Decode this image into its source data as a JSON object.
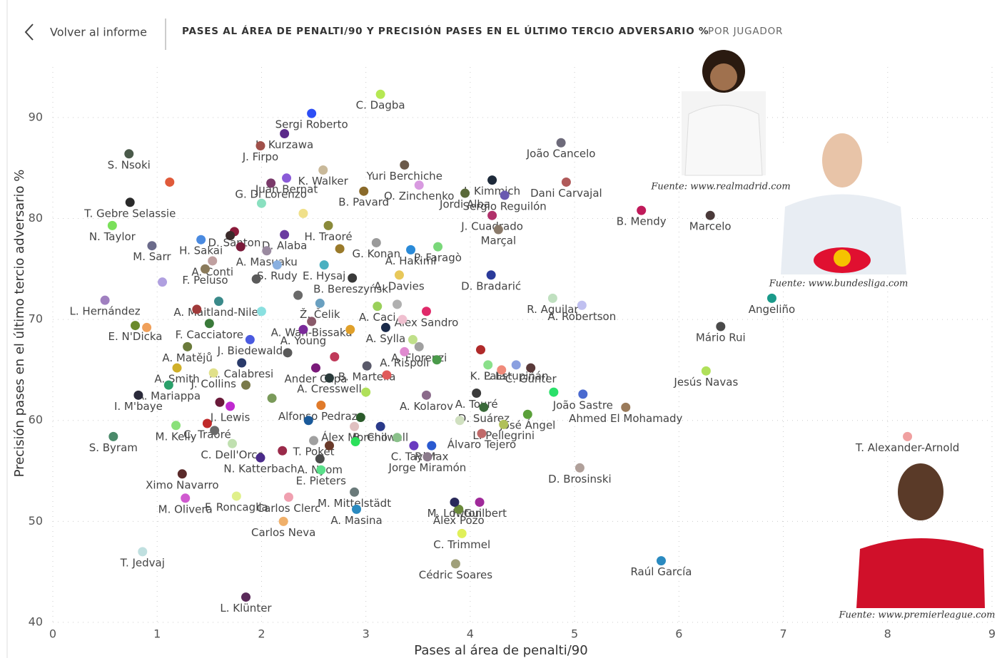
{
  "header": {
    "back": "Volver al informe",
    "title": "PASES AL ÁREA DE PENALTI/90 Y PRECISIÓN PASES EN EL ÚLTIMO TERCIO ADVERSARIO %",
    "subtitle": "POR JUGADOR"
  },
  "photo_credits": [
    "Fuente: www.realmadrid.com",
    "Fuente: www.bundesliga.com",
    "Fuente: www.premierleague.com"
  ],
  "chart_data": {
    "type": "scatter",
    "x_label": "Pases al área de penalti/90",
    "y_label": "Precisión pases en el último tercio adversario %",
    "xlim": [
      0,
      9
    ],
    "xticks": [
      0,
      1,
      2,
      3,
      4,
      5,
      6,
      7,
      8,
      9
    ],
    "ylim": [
      40,
      95
    ],
    "yticks": [
      40,
      50,
      60,
      70,
      80,
      90
    ],
    "grid": true,
    "labels": [
      "Sergi Roberto",
      "C. Dagba",
      "L. Kurzawa",
      "Yuri Berchiche",
      "K. Walker",
      "J. Firpo",
      "João Cancelo",
      "J. Kimmich",
      "Dani Carvajal",
      "S. Nsoki",
      "Juan Bernat",
      "O. Zinchenko",
      "G. Di Lorenzo",
      "T. Gebre Selassie",
      "B. Pavard",
      "Jordi Alba",
      "J. Cuadrado",
      "B. Mendy",
      "Marcelo",
      "N. Taylor",
      "D. Santon",
      "D. Alaba",
      "H. Traoré",
      "Marçal",
      "Sergio Reguilón",
      "M. Sarr",
      "A. Hakimi",
      "H. Sakai",
      "A. Masuaku",
      "G. Konan",
      "P. Faragò",
      "F. Peluso",
      "A. Conti",
      "S. Rudy",
      "E. Hysaj",
      "A. Davies",
      "B. Bereszyński",
      "L. Hernández",
      "A. Maitland-Niles",
      "R. Aguilar",
      "D. Bradarić",
      "Angeliño",
      "A. Caci",
      "Ž. Čelik",
      "E. N'Dicka",
      "Alex Sandro",
      "A. Robertson",
      "F. Cacciatore",
      "A. Wan-Bissaka",
      "A. Sylla",
      "Mário Rui",
      "A. Matějů",
      "J. Biedewald",
      "A. Young",
      "A. Florenzi",
      "A. Rispoli",
      "C. Günter",
      "P. Estupiñán",
      "A. Calabresi",
      "Ander Capa",
      "B. Martella",
      "K. Lala",
      "A. Smith",
      "Jesús Navas",
      "J. Collins",
      "A. Cresswell",
      "I. M'baye",
      "A. Mariappa",
      "J. Lewis",
      "A. Kolarov",
      "A. Touré",
      "João Sastre",
      "Alfonso Pedraza",
      "D. Suárez",
      "Ahmed El Mohamady",
      "M. Kelly",
      "C. Traoré",
      "Álex Moreno",
      "B. Chilwell",
      "L. Pellegrini",
      "José Ángel",
      "S. Byram",
      "T. Alexander-Arnold",
      "C. Dell'Orco",
      "T. Poket",
      "C. Taylor",
      "P. Max",
      "Álvaro Tejero",
      "N. Katterbach",
      "A. Nyom",
      "Jorge Miramón",
      "Ximo Navarro",
      "E. Pieters",
      "D. Brosinski",
      "F. Roncaglia",
      "M. Mittelstädt",
      "F. Guilbert",
      "Carlos Clerc",
      "A. Masina",
      "M. Olivera",
      "Álex Pozo",
      "Carlos Neva",
      "C. Trimmel",
      "Cédric Soares",
      "M. Lowton",
      "T. Jedvaj",
      "Raúl García",
      "L. Klünter",
      null,
      null,
      null,
      null,
      null,
      null,
      null,
      null,
      null,
      null,
      null,
      null,
      null,
      null,
      null,
      null,
      null,
      null,
      null,
      null,
      null,
      null,
      null,
      null,
      null,
      null,
      null,
      null,
      null,
      null,
      null,
      null,
      null,
      null,
      null
    ],
    "x": [
      2.48,
      3.14,
      2.22,
      3.37,
      2.59,
      1.99,
      4.87,
      4.21,
      4.92,
      0.73,
      2.24,
      3.51,
      2.09,
      0.74,
      2.98,
      3.95,
      4.21,
      5.64,
      6.3,
      0.57,
      1.74,
      2.22,
      2.64,
      4.27,
      4.33,
      0.95,
      3.43,
      1.42,
      2.05,
      3.1,
      3.69,
      1.46,
      1.53,
      2.15,
      2.6,
      3.32,
      2.87,
      0.5,
      1.59,
      4.79,
      4.2,
      6.89,
      3.11,
      2.56,
      0.79,
      3.58,
      5.07,
      1.5,
      2.48,
      3.19,
      6.4,
      1.29,
      1.89,
      2.4,
      3.51,
      3.37,
      4.58,
      4.44,
      1.81,
      2.52,
      3.01,
      4.17,
      1.19,
      6.26,
      1.54,
      2.65,
      0.82,
      1.11,
      1.7,
      3.58,
      4.06,
      5.08,
      2.57,
      4.13,
      5.49,
      1.18,
      1.48,
      2.89,
      3.14,
      4.32,
      4.55,
      0.58,
      8.19,
      1.72,
      2.5,
      3.46,
      3.63,
      4.11,
      1.99,
      2.56,
      3.59,
      1.24,
      2.57,
      5.05,
      1.76,
      2.89,
      4.09,
      2.26,
      2.91,
      1.27,
      3.89,
      2.21,
      3.92,
      3.86,
      3.85,
      0.86,
      5.83,
      1.85,
      1.12,
      1.7,
      1.95,
      2.35,
      2.85,
      3.35,
      1.38,
      2.0,
      2.7,
      3.2,
      3.68,
      2.25,
      1.85,
      2.1,
      2.95,
      3.3,
      1.55,
      2.2,
      2.65,
      2.9,
      3.9,
      4.1,
      4.3,
      4.8,
      3.0,
      1.05,
      2.75,
      3.3,
      2.4,
      1.6,
      0.9,
      1.8,
      2.0,
      3.45,
      2.45
    ],
    "values": [
      90.4,
      92.3,
      88.4,
      85.3,
      84.8,
      87.2,
      87.5,
      83.8,
      83.6,
      86.4,
      84.0,
      83.3,
      83.5,
      81.6,
      82.7,
      82.5,
      80.3,
      80.8,
      80.3,
      79.3,
      78.7,
      78.4,
      79.3,
      78.9,
      82.3,
      77.3,
      76.9,
      77.9,
      76.8,
      77.6,
      77.2,
      75.0,
      75.8,
      75.4,
      75.4,
      74.4,
      74.1,
      71.9,
      71.8,
      72.1,
      74.4,
      72.1,
      71.3,
      71.6,
      69.4,
      70.8,
      71.4,
      69.6,
      69.8,
      69.2,
      69.3,
      67.3,
      68.0,
      69.0,
      67.3,
      66.8,
      65.2,
      65.5,
      65.7,
      65.2,
      65.4,
      65.5,
      65.2,
      64.9,
      64.7,
      64.2,
      62.5,
      63.5,
      61.4,
      62.5,
      62.7,
      62.6,
      61.5,
      61.3,
      61.3,
      59.5,
      59.7,
      59.4,
      59.4,
      59.6,
      60.6,
      58.4,
      58.4,
      57.7,
      58.0,
      57.5,
      57.5,
      58.7,
      56.3,
      56.2,
      56.4,
      54.7,
      55.1,
      55.3,
      52.5,
      52.9,
      51.9,
      52.4,
      51.2,
      52.3,
      51.2,
      50.0,
      48.8,
      45.8,
      51.9,
      47.0,
      46.1,
      42.5,
      83.6,
      78.3,
      74.0,
      72.4,
      69.0,
      70.0,
      71.0,
      70.8,
      66.3,
      64.5,
      66.0,
      66.7,
      63.5,
      62.2,
      60.3,
      58.3,
      59.0,
      57.0,
      57.5,
      57.9,
      60.0,
      67.0,
      65.0,
      62.8,
      62.8,
      73.7,
      77.0,
      71.5,
      80.5,
      61.8,
      69.2,
      77.2,
      81.5,
      68.0,
      60.0
    ],
    "colors": [
      "#2d4ef5",
      "#b5e853",
      "#5b2a8a",
      "#6b5a4a",
      "#c9b99a",
      "#a0504a",
      "#6d6a7a",
      "#1e2a3a",
      "#b05a5a",
      "#4a5a4a",
      "#8a5ad8",
      "#d89ae0",
      "#7a3a6a",
      "#2a2a2a",
      "#8a6a2a",
      "#5a6a3a",
      "#b0306a",
      "#c01a5a",
      "#4a3a3a",
      "#7ae05a",
      "#8a1a3a",
      "#6a3aa0",
      "#8a8a3a",
      "#8a7a6a",
      "#6a5ab0",
      "#6a6a8a",
      "#2a8ad8",
      "#4a8ae0",
      "#9a8aa0",
      "#9a9a9a",
      "#7ad87a",
      "#8a7a5a",
      "#c0a0a0",
      "#8ab0e0",
      "#4ab0c0",
      "#e8c85a",
      "#3a3a3a",
      "#a080c0",
      "#3a8a8a",
      "#c0e0c0",
      "#2a3a9a",
      "#1a9a8a",
      "#9ad05a",
      "#6aa0c0",
      "#6a8a2a",
      "#e02a6a",
      "#c0c0f0",
      "#3a7a3a",
      "#8a5a6a",
      "#1a2a4a",
      "#4a4a4a",
      "#6a7a3a",
      "#4a5ae0",
      "#7a2a9a",
      "#a0a0a0",
      "#e08ad0",
      "#5a3a3a",
      "#8aa0e0",
      "#2a3a6a",
      "#7a1a7a",
      "#5a5a6a",
      "#8ae08a",
      "#d0b02a",
      "#b0e05a",
      "#e0e08a",
      "#2a3a3a",
      "#2a2a3a",
      "#2aa06a",
      "#c02ad0",
      "#8a6a8a",
      "#3a3a3a",
      "#4a6ad0",
      "#e07a2a",
      "#3a6a3a",
      "#9a7a5a",
      "#8ae07a",
      "#c02a2a",
      "#e0c0c0",
      "#2a3a8a",
      "#b0c05a",
      "#5aa03a",
      "#4a8a6a",
      "#f0a0a0",
      "#c0e0b0",
      "#a0a0a0",
      "#6a3ac0",
      "#2a5ad0",
      "#c06a6a",
      "#4a2a8a",
      "#4a4a4a",
      "#8a7a8a",
      "#5a2a2a",
      "#5ae08a",
      "#b0a09a",
      "#e0f08a",
      "#6a7a7a",
      "#a02a9a",
      "#f0a0b0",
      "#2a8ac0",
      "#d05ad0",
      "#6a8a3a",
      "#f0b06a",
      "#e0f05a",
      "#a0a07a",
      "#2a2a5a",
      "#c0e0e0",
      "#2a8ac0",
      "#5a2a5a",
      "#e05a3a",
      "#3a2a2a",
      "#5a5a5a",
      "#6a6a6a",
      "#e0a02a",
      "#f0c0d0",
      "#a03a3a",
      "#8ae0e0",
      "#c03a5a",
      "#e05a5a",
      "#4a9a4a",
      "#5a5a5a",
      "#7a7a4a",
      "#7a9a5a",
      "#2a5a2a",
      "#8ac08a",
      "#6a6a6a",
      "#9a2a4a",
      "#6a3a2a",
      "#2ae05a",
      "#d0e0c0",
      "#b02a2a",
      "#f08a7a",
      "#2ae06a",
      "#b0e05a",
      "#b0a0e0",
      "#9a7a2a",
      "#b0b0b0",
      "#f0e08a",
      "#6a1a3a",
      "#f0a05a",
      "#7a1a3a",
      "#8ae0c0",
      "#c0e08a",
      "#1a5a9a"
    ]
  }
}
